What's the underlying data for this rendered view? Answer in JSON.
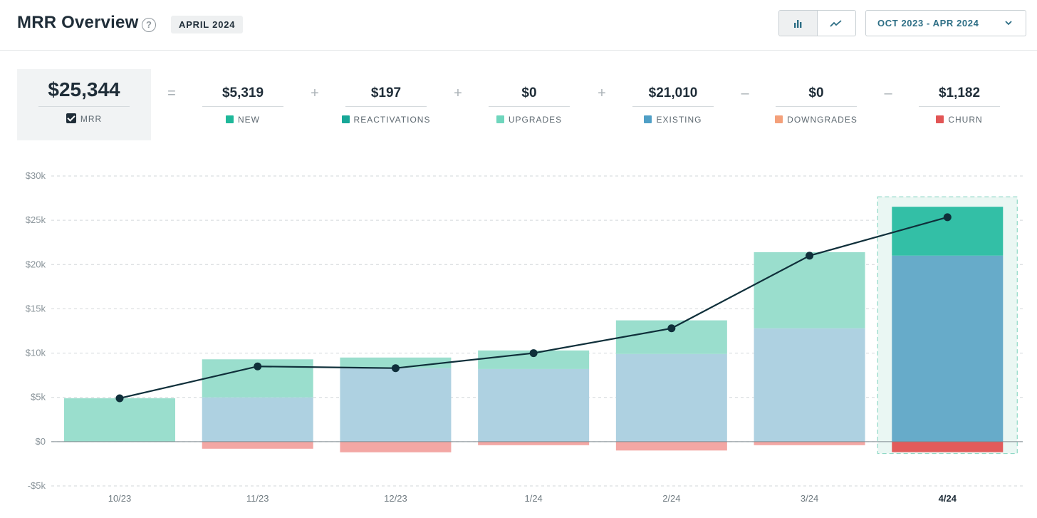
{
  "header": {
    "title": "MRR Overview",
    "help_icon": "question-circle-icon",
    "period_badge": "APRIL 2024",
    "view_toggle": {
      "bar_icon": "bar-chart-icon",
      "line_icon": "line-chart-icon",
      "active": "bar"
    },
    "date_range": "OCT 2023 - APR 2024",
    "date_range_icon": "chevron-down-icon"
  },
  "formula": {
    "mrr": {
      "value": "$25,344",
      "label": "MRR",
      "checked": true
    },
    "components": [
      {
        "operator": "=",
        "value": "$5,319",
        "label": "NEW",
        "color": "#1fb89a"
      },
      {
        "operator": "+",
        "value": "$197",
        "label": "REACTIVATIONS",
        "color": "#17a797"
      },
      {
        "operator": "+",
        "value": "$0",
        "label": "UPGRADES",
        "color": "#6fd6bd"
      },
      {
        "operator": "+",
        "value": "$21,010",
        "label": "EXISTING",
        "color": "#4f9fc6"
      },
      {
        "operator": "–",
        "value": "$0",
        "label": "DOWNGRADES",
        "color": "#f4a07a"
      },
      {
        "operator": "–",
        "value": "$1,182",
        "label": "CHURN",
        "color": "#e25555"
      }
    ]
  },
  "colors": {
    "new": "#9adecd",
    "existing": "#aed1e1",
    "churn": "#f3a7a4",
    "new_active": "#33bfa6",
    "existing_active": "#67abc9",
    "churn_active": "#e25b5b",
    "line": "#0f2f3a",
    "grid": "#d2d7da",
    "highlight": "#eaf7f3"
  },
  "chart_data": {
    "type": "bar",
    "stacked": true,
    "categories": [
      "10/23",
      "11/23",
      "12/23",
      "1/24",
      "2/24",
      "3/24",
      "4/24"
    ],
    "active_category": "4/24",
    "ylim": [
      -5000,
      30000
    ],
    "yticks": [
      -5000,
      0,
      5000,
      10000,
      15000,
      20000,
      25000,
      30000
    ],
    "ytick_labels": [
      "-$5k",
      "$0",
      "$5k",
      "$10k",
      "$15k",
      "$20k",
      "$25k",
      "$30k"
    ],
    "grid": true,
    "series": [
      {
        "key": "existing",
        "values": [
          0,
          5000,
          8300,
          8200,
          9900,
          12800,
          21010
        ]
      },
      {
        "key": "new",
        "values": [
          4900,
          4300,
          1200,
          2100,
          3800,
          8600,
          5516
        ]
      },
      {
        "key": "churn",
        "values": [
          0,
          -800,
          -1200,
          -400,
          -1000,
          -400,
          -1182
        ]
      }
    ],
    "mrr_line": [
      4900,
      8500,
      8300,
      10000,
      12800,
      21000,
      25344
    ]
  }
}
